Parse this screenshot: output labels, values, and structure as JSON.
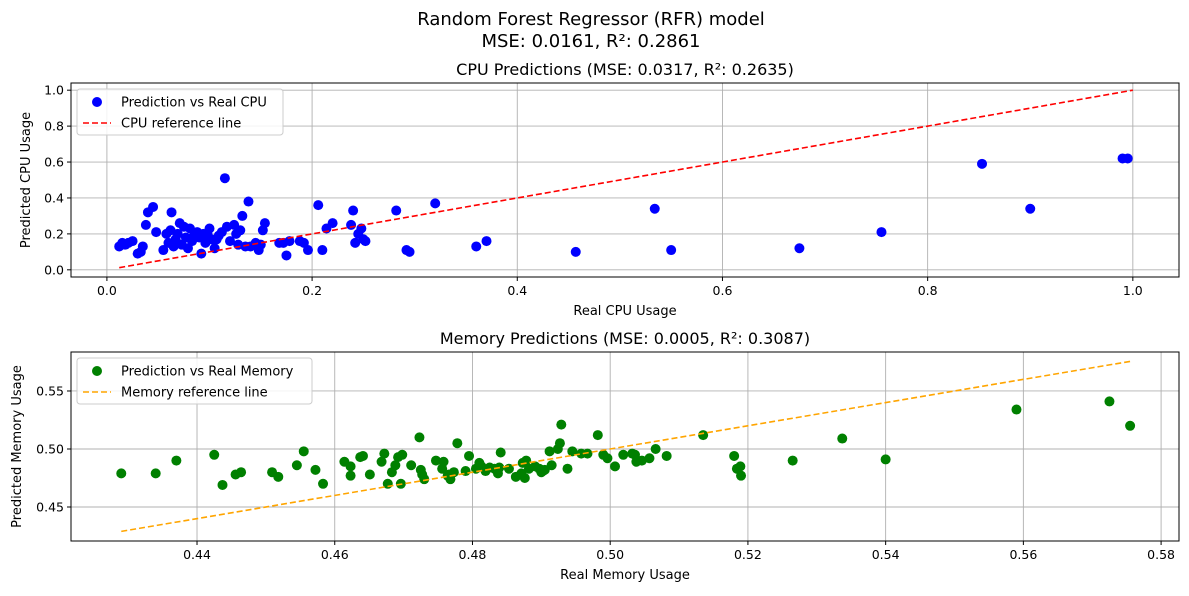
{
  "figure": {
    "title_line1": "Random Forest Regressor (RFR) model",
    "title_line2": "MSE: 0.0161, R²: 0.2861"
  },
  "chart_data": [
    {
      "type": "scatter",
      "title": "CPU Predictions (MSE: 0.0317, R²: 0.2635)",
      "xlabel": "Real CPU Usage",
      "ylabel": "Predicted CPU Usage",
      "xlim": [
        -0.035,
        1.045
      ],
      "ylim": [
        -0.04,
        1.04
      ],
      "xticks": [
        0.0,
        0.2,
        0.4,
        0.6,
        0.8,
        1.0
      ],
      "xtick_labels": [
        "0.0",
        "0.2",
        "0.4",
        "0.6",
        "0.8",
        "1.0"
      ],
      "yticks": [
        0.0,
        0.2,
        0.4,
        0.6,
        0.8,
        1.0
      ],
      "ytick_labels": [
        "0.0",
        "0.2",
        "0.4",
        "0.6",
        "0.8",
        "1.0"
      ],
      "grid": true,
      "legend_position": "top-left",
      "series": [
        {
          "name": "Prediction vs Real CPU",
          "kind": "scatter",
          "color": "#0000ff",
          "points": [
            [
              0.012,
              0.13
            ],
            [
              0.015,
              0.15
            ],
            [
              0.018,
              0.14
            ],
            [
              0.021,
              0.15
            ],
            [
              0.025,
              0.16
            ],
            [
              0.03,
              0.09
            ],
            [
              0.033,
              0.1
            ],
            [
              0.035,
              0.13
            ],
            [
              0.038,
              0.25
            ],
            [
              0.04,
              0.32
            ],
            [
              0.045,
              0.35
            ],
            [
              0.048,
              0.21
            ],
            [
              0.055,
              0.11
            ],
            [
              0.058,
              0.2
            ],
            [
              0.06,
              0.15
            ],
            [
              0.062,
              0.22
            ],
            [
              0.063,
              0.32
            ],
            [
              0.065,
              0.13
            ],
            [
              0.067,
              0.17
            ],
            [
              0.069,
              0.2
            ],
            [
              0.071,
              0.26
            ],
            [
              0.073,
              0.14
            ],
            [
              0.075,
              0.24
            ],
            [
              0.077,
              0.18
            ],
            [
              0.079,
              0.12
            ],
            [
              0.081,
              0.23
            ],
            [
              0.083,
              0.16
            ],
            [
              0.085,
              0.19
            ],
            [
              0.088,
              0.21
            ],
            [
              0.09,
              0.18
            ],
            [
              0.092,
              0.09
            ],
            [
              0.094,
              0.2
            ],
            [
              0.096,
              0.15
            ],
            [
              0.098,
              0.2
            ],
            [
              0.1,
              0.23
            ],
            [
              0.102,
              0.17
            ],
            [
              0.105,
              0.12
            ],
            [
              0.107,
              0.17
            ],
            [
              0.109,
              0.19
            ],
            [
              0.112,
              0.21
            ],
            [
              0.115,
              0.51
            ],
            [
              0.117,
              0.24
            ],
            [
              0.12,
              0.16
            ],
            [
              0.124,
              0.25
            ],
            [
              0.126,
              0.2
            ],
            [
              0.128,
              0.14
            ],
            [
              0.13,
              0.22
            ],
            [
              0.132,
              0.3
            ],
            [
              0.135,
              0.13
            ],
            [
              0.138,
              0.38
            ],
            [
              0.14,
              0.13
            ],
            [
              0.145,
              0.15
            ],
            [
              0.148,
              0.11
            ],
            [
              0.15,
              0.14
            ],
            [
              0.152,
              0.22
            ],
            [
              0.154,
              0.26
            ],
            [
              0.168,
              0.15
            ],
            [
              0.172,
              0.15
            ],
            [
              0.175,
              0.08
            ],
            [
              0.178,
              0.16
            ],
            [
              0.188,
              0.16
            ],
            [
              0.192,
              0.15
            ],
            [
              0.196,
              0.11
            ],
            [
              0.206,
              0.36
            ],
            [
              0.21,
              0.11
            ],
            [
              0.214,
              0.23
            ],
            [
              0.22,
              0.26
            ],
            [
              0.238,
              0.25
            ],
            [
              0.24,
              0.33
            ],
            [
              0.242,
              0.15
            ],
            [
              0.245,
              0.2
            ],
            [
              0.248,
              0.23
            ],
            [
              0.25,
              0.17
            ],
            [
              0.252,
              0.16
            ],
            [
              0.282,
              0.33
            ],
            [
              0.292,
              0.11
            ],
            [
              0.295,
              0.1
            ],
            [
              0.32,
              0.37
            ],
            [
              0.36,
              0.13
            ],
            [
              0.37,
              0.16
            ],
            [
              0.457,
              0.1
            ],
            [
              0.534,
              0.34
            ],
            [
              0.55,
              0.11
            ],
            [
              0.675,
              0.12
            ],
            [
              0.755,
              0.21
            ],
            [
              0.853,
              0.59
            ],
            [
              0.9,
              0.34
            ],
            [
              0.99,
              0.62
            ],
            [
              0.995,
              0.62
            ]
          ]
        },
        {
          "name": "CPU reference line",
          "kind": "line",
          "dash": "dashed",
          "color": "#ff0000",
          "points": [
            [
              0.012,
              0.012
            ],
            [
              1.0,
              1.0
            ]
          ]
        }
      ]
    },
    {
      "type": "scatter",
      "title": "Memory Predictions (MSE: 0.0005, R²: 0.3087)",
      "xlabel": "Real Memory Usage",
      "ylabel": "Predicted Memory Usage",
      "xlim": [
        0.4217,
        0.5826
      ],
      "ylim": [
        0.4207,
        0.5836
      ],
      "xticks": [
        0.44,
        0.46,
        0.48,
        0.5,
        0.52,
        0.54,
        0.56,
        0.58
      ],
      "xtick_labels": [
        "0.44",
        "0.46",
        "0.48",
        "0.50",
        "0.52",
        "0.54",
        "0.56",
        "0.58"
      ],
      "yticks": [
        0.45,
        0.5,
        0.55
      ],
      "ytick_labels": [
        "0.45",
        "0.50",
        "0.55"
      ],
      "grid": true,
      "legend_position": "top-left",
      "series": [
        {
          "name": "Prediction vs Real Memory",
          "kind": "scatter",
          "color": "#008000",
          "points": [
            [
              0.429,
              0.479
            ],
            [
              0.434,
              0.479
            ],
            [
              0.437,
              0.49
            ],
            [
              0.4425,
              0.495
            ],
            [
              0.4437,
              0.469
            ],
            [
              0.4456,
              0.478
            ],
            [
              0.4464,
              0.48
            ],
            [
              0.4509,
              0.48
            ],
            [
              0.4518,
              0.476
            ],
            [
              0.4545,
              0.486
            ],
            [
              0.4555,
              0.498
            ],
            [
              0.4572,
              0.482
            ],
            [
              0.4583,
              0.47
            ],
            [
              0.4614,
              0.489
            ],
            [
              0.4623,
              0.485
            ],
            [
              0.4623,
              0.477
            ],
            [
              0.4637,
              0.493
            ],
            [
              0.4641,
              0.494
            ],
            [
              0.4651,
              0.478
            ],
            [
              0.4668,
              0.489
            ],
            [
              0.4672,
              0.496
            ],
            [
              0.4677,
              0.47
            ],
            [
              0.4683,
              0.48
            ],
            [
              0.4688,
              0.486
            ],
            [
              0.4692,
              0.493
            ],
            [
              0.4696,
              0.47
            ],
            [
              0.4698,
              0.495
            ],
            [
              0.4711,
              0.486
            ],
            [
              0.4723,
              0.51
            ],
            [
              0.4725,
              0.482
            ],
            [
              0.4727,
              0.478
            ],
            [
              0.473,
              0.474
            ],
            [
              0.4747,
              0.49
            ],
            [
              0.4756,
              0.483
            ],
            [
              0.4758,
              0.489
            ],
            [
              0.4764,
              0.477
            ],
            [
              0.4766,
              0.478
            ],
            [
              0.4768,
              0.474
            ],
            [
              0.4773,
              0.48
            ],
            [
              0.4778,
              0.505
            ],
            [
              0.479,
              0.481
            ],
            [
              0.4795,
              0.494
            ],
            [
              0.4805,
              0.483
            ],
            [
              0.481,
              0.488
            ],
            [
              0.4813,
              0.485
            ],
            [
              0.4819,
              0.481
            ],
            [
              0.4825,
              0.484
            ],
            [
              0.4832,
              0.483
            ],
            [
              0.4837,
              0.479
            ],
            [
              0.4839,
              0.484
            ],
            [
              0.4841,
              0.497
            ],
            [
              0.4853,
              0.483
            ],
            [
              0.4863,
              0.476
            ],
            [
              0.4871,
              0.479
            ],
            [
              0.4873,
              0.488
            ],
            [
              0.4876,
              0.475
            ],
            [
              0.4878,
              0.49
            ],
            [
              0.4882,
              0.483
            ],
            [
              0.4891,
              0.485
            ],
            [
              0.4897,
              0.483
            ],
            [
              0.49,
              0.48
            ],
            [
              0.4902,
              0.481
            ],
            [
              0.4905,
              0.482
            ],
            [
              0.4912,
              0.498
            ],
            [
              0.4915,
              0.486
            ],
            [
              0.4924,
              0.5
            ],
            [
              0.4927,
              0.505
            ],
            [
              0.4929,
              0.521
            ],
            [
              0.4938,
              0.483
            ],
            [
              0.4945,
              0.498
            ],
            [
              0.4958,
              0.496
            ],
            [
              0.4967,
              0.496
            ],
            [
              0.4982,
              0.512
            ],
            [
              0.499,
              0.495
            ],
            [
              0.4996,
              0.492
            ],
            [
              0.5007,
              0.485
            ],
            [
              0.5019,
              0.495
            ],
            [
              0.5032,
              0.496
            ],
            [
              0.5036,
              0.495
            ],
            [
              0.5038,
              0.489
            ],
            [
              0.5046,
              0.49
            ],
            [
              0.5057,
              0.492
            ],
            [
              0.5066,
              0.5
            ],
            [
              0.5082,
              0.494
            ],
            [
              0.5135,
              0.512
            ],
            [
              0.518,
              0.494
            ],
            [
              0.5184,
              0.483
            ],
            [
              0.5189,
              0.485
            ],
            [
              0.519,
              0.477
            ],
            [
              0.5265,
              0.49
            ],
            [
              0.5337,
              0.509
            ],
            [
              0.54,
              0.491
            ],
            [
              0.559,
              0.534
            ],
            [
              0.5725,
              0.541
            ],
            [
              0.5755,
              0.52
            ]
          ]
        },
        {
          "name": "Memory reference line",
          "kind": "line",
          "dash": "dashed",
          "color": "#ffa500",
          "points": [
            [
              0.429,
              0.429
            ],
            [
              0.5755,
              0.5755
            ]
          ]
        }
      ]
    }
  ]
}
